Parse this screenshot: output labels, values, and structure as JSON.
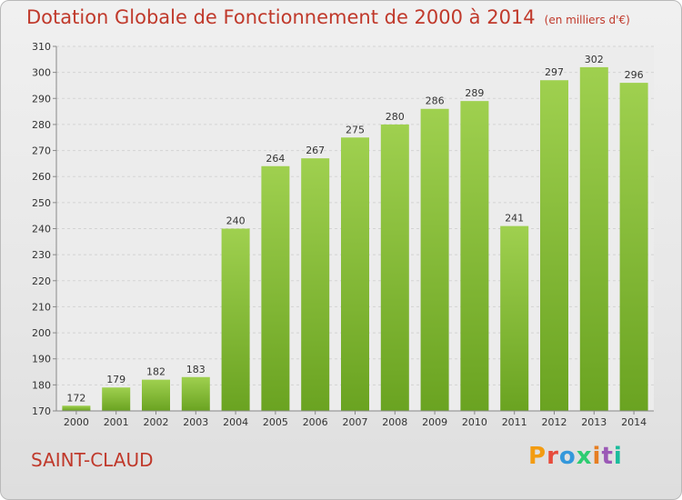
{
  "header": {
    "title": "Dotation Globale de Fonctionnement de 2000 à 2014",
    "unit_note": "(en milliers d'€)"
  },
  "footer": {
    "city": "SAINT-CLAUD",
    "logo": "Proxiti"
  },
  "colors": {
    "title": "#c0392b",
    "bar_top": "#9fd04f",
    "bar_bottom": "#6aa321",
    "logo_letters": [
      "#f39c12",
      "#e74c3c",
      "#3498db",
      "#2ecc71",
      "#e67e22",
      "#9b59b6",
      "#1abc9c"
    ]
  },
  "chart_data": {
    "type": "bar",
    "categories": [
      "2000",
      "2001",
      "2002",
      "2003",
      "2004",
      "2005",
      "2006",
      "2007",
      "2008",
      "2009",
      "2010",
      "2011",
      "2012",
      "2013",
      "2014"
    ],
    "values": [
      172,
      179,
      182,
      183,
      240,
      264,
      267,
      275,
      280,
      286,
      289,
      241,
      297,
      302,
      296
    ],
    "ylim": [
      170,
      310
    ],
    "yticks": [
      170,
      180,
      190,
      200,
      210,
      220,
      230,
      240,
      250,
      260,
      270,
      280,
      290,
      300,
      310
    ],
    "grid": true,
    "legend": "none",
    "title": "Dotation Globale de Fonctionnement de 2000 à 2014",
    "xlabel": "",
    "ylabel": ""
  }
}
